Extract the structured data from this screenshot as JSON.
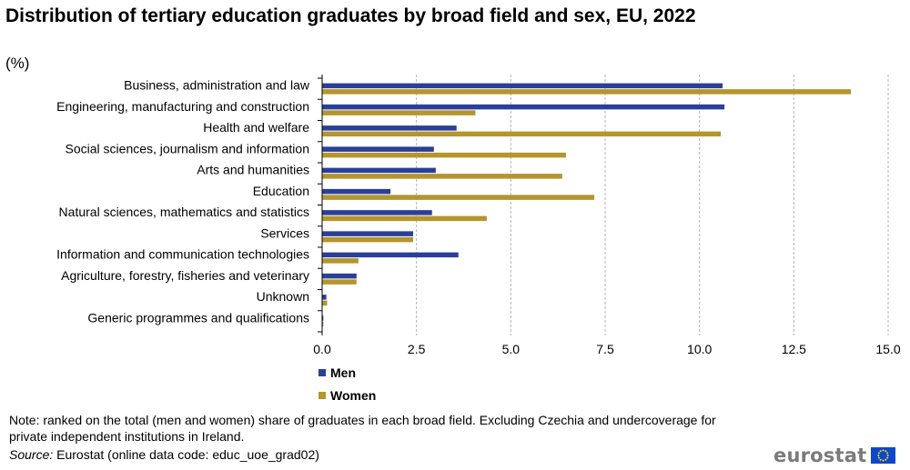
{
  "chart_data": {
    "type": "bar",
    "orientation": "horizontal",
    "title": "Distribution of tertiary education graduates by broad field and sex, EU, 2022",
    "subtitle": "(%)",
    "categories": [
      "Business, administration and law",
      "Engineering, manufacturing and construction",
      "Health and welfare",
      "Social sciences, journalism and information",
      "Arts and humanities",
      "Education",
      "Natural sciences, mathematics and statistics",
      "Services",
      "Information and communication technologies",
      "Agriculture, forestry, fisheries and veterinary",
      "Unknown",
      "Generic programmes and qualifications"
    ],
    "series": [
      {
        "name": "Men",
        "color": "#2a3f9a",
        "values": [
          10.6,
          10.65,
          3.55,
          2.95,
          3.0,
          1.8,
          2.9,
          2.4,
          3.6,
          0.9,
          0.1,
          0.02
        ]
      },
      {
        "name": "Women",
        "color": "#b4952e",
        "values": [
          14.0,
          4.05,
          10.55,
          6.45,
          6.35,
          7.2,
          4.35,
          2.4,
          0.95,
          0.9,
          0.12,
          0.02
        ]
      }
    ],
    "xlim": [
      0,
      15
    ],
    "xticks": [
      "0.0",
      "2.5",
      "5.0",
      "7.5",
      "10.0",
      "12.5",
      "15.0"
    ],
    "grid": "vertical dashed",
    "legend_position": "bottom"
  },
  "note": "Note: ranked on the total (men and women) share of graduates in each broad field. Excluding Czechia and undercoverage for private independent institutions in Ireland.",
  "source_label": "Source:",
  "source_text": " Eurostat (online data code: educ_uoe_grad02)",
  "logo_text": "eurostat"
}
